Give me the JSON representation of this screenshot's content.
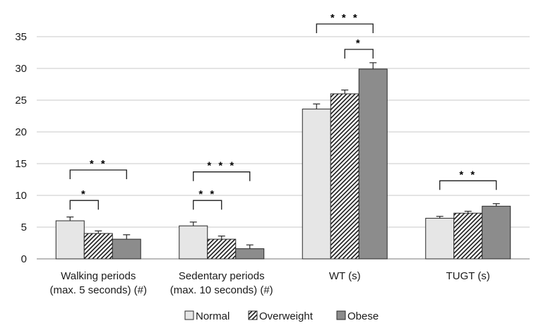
{
  "chart_data": {
    "type": "bar",
    "categories": [
      [
        "Walking periods",
        "(max. 5 seconds) (#)"
      ],
      [
        "Sedentary periods",
        "(max. 10 seconds) (#)"
      ],
      [
        "WT (s)"
      ],
      [
        "TUGT (s)"
      ]
    ],
    "series": [
      {
        "name": "Normal",
        "pattern": "solid-light",
        "color": "#e6e6e6",
        "values": [
          6.0,
          5.2,
          23.6,
          6.4
        ],
        "errors": [
          0.6,
          0.6,
          0.8,
          0.3
        ]
      },
      {
        "name": "Overweight",
        "pattern": "hatch",
        "color": "#ffffff",
        "values": [
          4.0,
          3.1,
          26.0,
          7.2
        ],
        "errors": [
          0.4,
          0.5,
          0.6,
          0.3
        ]
      },
      {
        "name": "Obese",
        "pattern": "solid-dark",
        "color": "#8c8c8c",
        "values": [
          3.1,
          1.6,
          29.9,
          8.3
        ],
        "errors": [
          0.7,
          0.6,
          1.0,
          0.4
        ]
      }
    ],
    "ylim": [
      0,
      35
    ],
    "yticks": [
      0,
      5,
      10,
      15,
      20,
      25,
      30,
      35
    ],
    "grid": true,
    "legend_position": "bottom",
    "significance": [
      {
        "category": 0,
        "from": 0,
        "to": 1,
        "label": "*",
        "level": 9.2
      },
      {
        "category": 0,
        "from": 0,
        "to": 2,
        "label": "* *",
        "level": 14.0
      },
      {
        "category": 1,
        "from": 0,
        "to": 1,
        "label": "* *",
        "level": 9.2
      },
      {
        "category": 1,
        "from": 0,
        "to": 2,
        "label": "* * *",
        "level": 13.7
      },
      {
        "category": 2,
        "from": 1,
        "to": 2,
        "label": "*",
        "level": 33.0
      },
      {
        "category": 2,
        "from": 0,
        "to": 2,
        "label": "* * *",
        "level": 37.0
      },
      {
        "category": 3,
        "from": 0,
        "to": 2,
        "label": "* *",
        "level": 12.3
      }
    ]
  }
}
